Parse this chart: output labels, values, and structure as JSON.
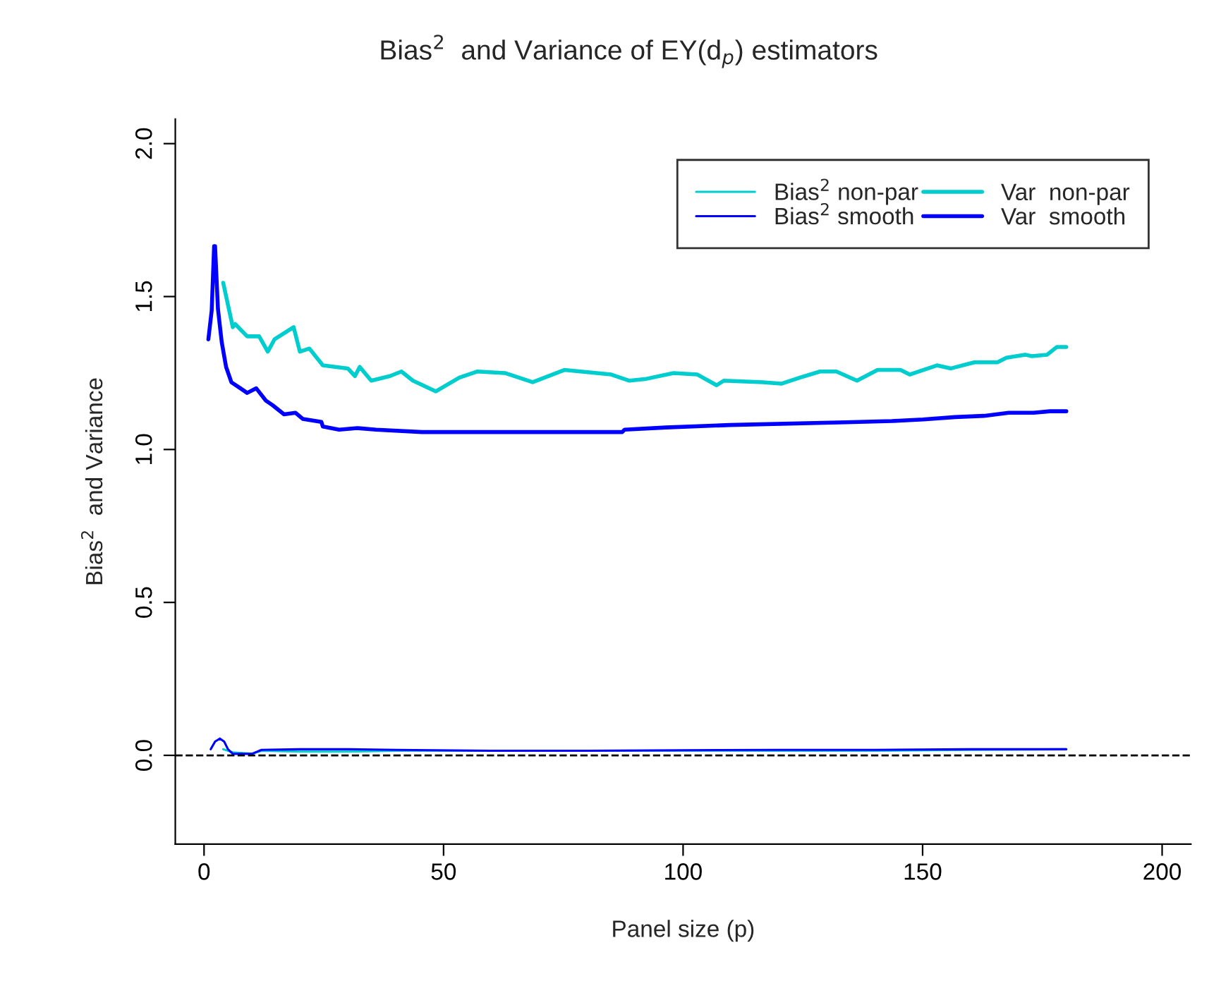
{
  "chart_data": {
    "type": "line",
    "title": "Bias$^{2}$  and Variance of EY(d$_{p}$) estimators",
    "xlabel": "Panel size (p)",
    "ylabel": "Bias$^{2}$  and Variance",
    "xlim": [
      -6,
      206
    ],
    "ylim": [
      -0.29,
      2.08
    ],
    "xticks": [
      0,
      50,
      100,
      150,
      200
    ],
    "yticks": [
      {
        "value": 0,
        "label": "0.0"
      },
      0.5,
      {
        "value": 1,
        "label": "1.0"
      },
      1.5,
      {
        "value": 2,
        "label": "2.0"
      }
    ],
    "grid": false,
    "legend": "top right",
    "line_style": "solid",
    "marker": "none",
    "ref_lines": [
      {
        "axis": "y",
        "value": 0,
        "color": "#000000",
        "line_style": "dashed"
      }
    ],
    "series": [
      {
        "name": "Bias$^{2}$ non-par",
        "color": "#00cdcd",
        "x": [
          4,
          6,
          10,
          12,
          20,
          30,
          40,
          60,
          80,
          100,
          120,
          140,
          160,
          180
        ],
        "values": [
          0.02,
          0.01,
          0.005,
          0.015,
          0.012,
          0.012,
          0.015,
          0.015,
          0.015,
          0.015,
          0.015,
          0.015,
          0.018,
          0.02
        ]
      },
      {
        "name": "Bias$^{2}$ smooth",
        "color": "#0000ff",
        "x": [
          1.4,
          2.3,
          3.3,
          4.2,
          5,
          6,
          10,
          12,
          20,
          30,
          40,
          60,
          80,
          100,
          120,
          140,
          160,
          180
        ],
        "values": [
          0.02,
          0.045,
          0.055,
          0.045,
          0.02,
          0.005,
          0.005,
          0.018,
          0.02,
          0.02,
          0.018,
          0.015,
          0.015,
          0.017,
          0.018,
          0.018,
          0.02,
          0.02
        ]
      },
      {
        "name": "Var  non-par",
        "color": "#00cdcd",
        "x": [
          4,
          6,
          6.5,
          9,
          11.5,
          13.3,
          14.7,
          18.7,
          20,
          22,
          24.8,
          30,
          31.5,
          32.5,
          34.9,
          38.8,
          41.2,
          43.6,
          48.4,
          53.3,
          57,
          62.8,
          68.6,
          75.2,
          85,
          88.8,
          92,
          98,
          103,
          107,
          108.5,
          116.7,
          120.5,
          124.4,
          128.6,
          132,
          136.3,
          140.6,
          145.4,
          147.3,
          153,
          155.9,
          160.8,
          165.6,
          167.5,
          171.4,
          172.8,
          176,
          178,
          180
        ],
        "values": [
          1.545,
          1.4,
          1.41,
          1.37,
          1.37,
          1.32,
          1.36,
          1.4,
          1.32,
          1.33,
          1.275,
          1.265,
          1.24,
          1.27,
          1.225,
          1.24,
          1.255,
          1.225,
          1.19,
          1.235,
          1.255,
          1.25,
          1.22,
          1.26,
          1.245,
          1.225,
          1.23,
          1.25,
          1.245,
          1.21,
          1.225,
          1.22,
          1.215,
          1.235,
          1.255,
          1.255,
          1.225,
          1.26,
          1.26,
          1.245,
          1.275,
          1.265,
          1.285,
          1.285,
          1.3,
          1.31,
          1.305,
          1.31,
          1.335,
          1.335
        ]
      },
      {
        "name": "Var  smooth",
        "color": "#0000ff",
        "x": [
          0.9,
          1.6,
          2.1,
          2.3,
          2.9,
          3.7,
          4.6,
          5.7,
          7.6,
          9,
          10.9,
          12.9,
          14.3,
          16.7,
          19.1,
          20.6,
          24.5,
          24.8,
          28.2,
          32,
          35.9,
          45.5,
          87.3,
          87.8,
          96.4,
          109.8,
          134,
          143.6,
          150.1,
          156.8,
          162.8,
          168,
          173.2,
          176.6,
          180
        ],
        "values": [
          1.36,
          1.455,
          1.665,
          1.665,
          1.46,
          1.35,
          1.27,
          1.22,
          1.2,
          1.185,
          1.2,
          1.16,
          1.145,
          1.115,
          1.12,
          1.1,
          1.09,
          1.075,
          1.065,
          1.07,
          1.065,
          1.057,
          1.057,
          1.065,
          1.072,
          1.08,
          1.089,
          1.093,
          1.098,
          1.106,
          1.11,
          1.12,
          1.12,
          1.125,
          1.125
        ]
      }
    ]
  }
}
